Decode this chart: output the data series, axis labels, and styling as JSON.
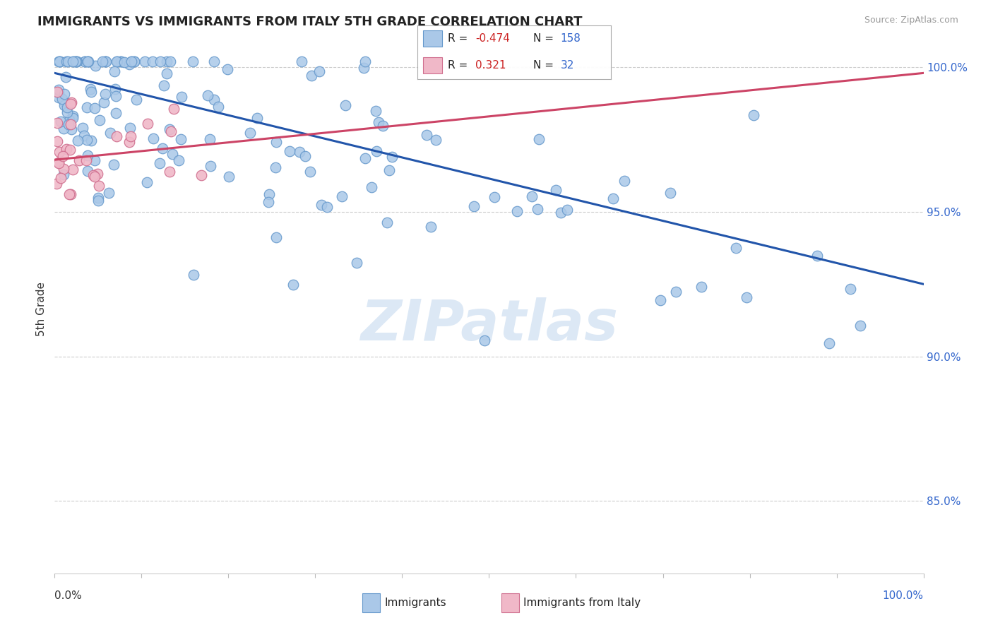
{
  "title": "IMMIGRANTS VS IMMIGRANTS FROM ITALY 5TH GRADE CORRELATION CHART",
  "source_text": "Source: ZipAtlas.com",
  "ylabel": "5th Grade",
  "right_ytick_labels": [
    "100.0%",
    "95.0%",
    "90.0%",
    "85.0%"
  ],
  "right_ytick_values": [
    1.0,
    0.95,
    0.9,
    0.85
  ],
  "xlim": [
    0.0,
    1.0
  ],
  "ylim": [
    0.825,
    1.008
  ],
  "legend_r_blue": "-0.474",
  "legend_n_blue": "158",
  "legend_r_pink": "0.321",
  "legend_n_pink": "32",
  "blue_color": "#aac8e8",
  "blue_edge_color": "#6699cc",
  "pink_color": "#f0b8c8",
  "pink_edge_color": "#d07090",
  "blue_line_color": "#2255aa",
  "pink_line_color": "#cc4466",
  "watermark_color": "#dce8f5",
  "legend_label_blue": "Immigrants",
  "legend_label_pink": "Immigrants from Italy",
  "blue_trend_start_y": 0.998,
  "blue_trend_end_y": 0.925,
  "pink_trend_start_x": 0.0,
  "pink_trend_end_x": 1.0,
  "pink_trend_start_y": 0.968,
  "pink_trend_end_y": 0.998
}
